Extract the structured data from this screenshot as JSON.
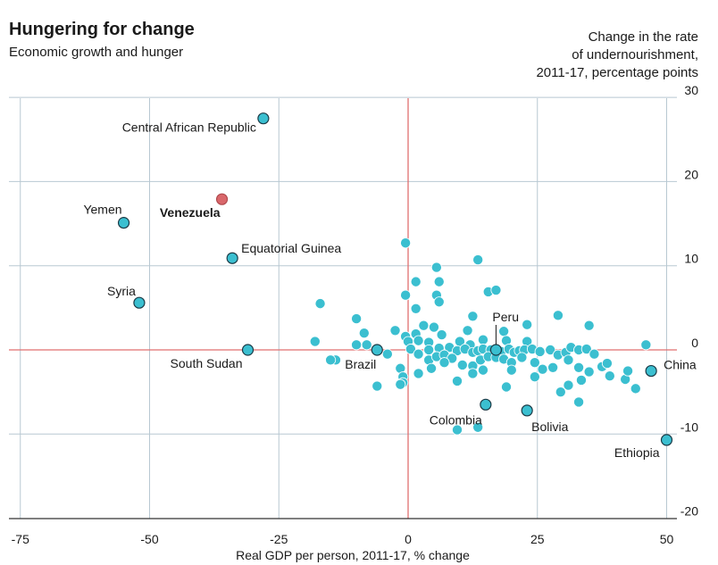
{
  "chart_data": {
    "type": "scatter",
    "title": "Hungering for change",
    "subtitle": "Economic growth and hunger",
    "ylabel": "Change in the rate of undernourishment, 2011-17, percentage points",
    "ylabel_lines": [
      "Change in the rate",
      "of undernourishment,",
      "2011-17, percentage points"
    ],
    "xlabel": "Real GDP per person, 2011-17, % change",
    "xlim": [
      -77,
      52
    ],
    "ylim": [
      -20,
      30
    ],
    "x_ticks": [
      -75,
      -50,
      -25,
      0,
      25,
      50
    ],
    "y_ticks": [
      30,
      20,
      10,
      0,
      -10,
      -20
    ],
    "grid": true,
    "colors": {
      "point": "#3bbfd0",
      "highlight": "#d9676b",
      "zero_line": "#e06f6f",
      "grid": "#b8c8d2",
      "axis": "#333333"
    },
    "labeled_points": [
      {
        "label": "Central African Republic",
        "x": -28,
        "y": 27.5
      },
      {
        "label": "Venezuela",
        "x": -36,
        "y": 17.9,
        "highlight": true
      },
      {
        "label": "Yemen",
        "x": -55,
        "y": 15.1
      },
      {
        "label": "Equatorial Guinea",
        "x": -34,
        "y": 10.9
      },
      {
        "label": "Syria",
        "x": -52,
        "y": 5.6
      },
      {
        "label": "South Sudan",
        "x": -31,
        "y": 0
      },
      {
        "label": "Brazil",
        "x": -6,
        "y": 0
      },
      {
        "label": "Peru",
        "x": 17,
        "y": 0
      },
      {
        "label": "China",
        "x": 47,
        "y": -2.5
      },
      {
        "label": "Colombia",
        "x": 15,
        "y": -6.5
      },
      {
        "label": "Bolivia",
        "x": 23,
        "y": -7.2
      },
      {
        "label": "Ethiopia",
        "x": 50,
        "y": -10.7
      }
    ],
    "points": [
      [
        -0.5,
        12.7
      ],
      [
        13.5,
        10.7
      ],
      [
        5.5,
        9.8
      ],
      [
        1.5,
        8.1
      ],
      [
        6,
        8.1
      ],
      [
        5.5,
        6.5
      ],
      [
        -0.5,
        6.5
      ],
      [
        15.5,
        6.9
      ],
      [
        17,
        7.1
      ],
      [
        -17,
        5.5
      ],
      [
        6,
        5.7
      ],
      [
        1.5,
        4.9
      ],
      [
        -10,
        3.7
      ],
      [
        12.5,
        4.0
      ],
      [
        29,
        4.1
      ],
      [
        5,
        2.7
      ],
      [
        3,
        2.9
      ],
      [
        35,
        2.9
      ],
      [
        -2.5,
        2.3
      ],
      [
        -8.5,
        2.0
      ],
      [
        -0.5,
        1.6
      ],
      [
        1.5,
        1.9
      ],
      [
        6.5,
        1.8
      ],
      [
        11.5,
        2.3
      ],
      [
        18.5,
        2.2
      ],
      [
        23,
        3.0
      ],
      [
        -18,
        1.0
      ],
      [
        -10,
        0.6
      ],
      [
        -8,
        0.6
      ],
      [
        0,
        1.0
      ],
      [
        2,
        1.1
      ],
      [
        4,
        0.9
      ],
      [
        10,
        1.0
      ],
      [
        12,
        0.6
      ],
      [
        14.5,
        1.2
      ],
      [
        19,
        1.1
      ],
      [
        23,
        1.0
      ],
      [
        -4,
        -0.5
      ],
      [
        0.5,
        0.1
      ],
      [
        4,
        0.0
      ],
      [
        6,
        0.2
      ],
      [
        8,
        0.3
      ],
      [
        9.5,
        -0.1
      ],
      [
        11,
        0.1
      ],
      [
        12.5,
        -0.3
      ],
      [
        13.5,
        -0.1
      ],
      [
        14.5,
        0.1
      ],
      [
        16,
        0.0
      ],
      [
        18,
        -0.2
      ],
      [
        19.5,
        0.1
      ],
      [
        20.5,
        -0.3
      ],
      [
        21.5,
        -0.1
      ],
      [
        22.5,
        0.0
      ],
      [
        24,
        0.1
      ],
      [
        25.5,
        -0.2
      ],
      [
        27.5,
        0.0
      ],
      [
        29,
        -0.6
      ],
      [
        30.5,
        -0.3
      ],
      [
        31.5,
        0.3
      ],
      [
        33,
        0.0
      ],
      [
        34.5,
        0.1
      ],
      [
        36,
        -0.5
      ],
      [
        46,
        0.6
      ],
      [
        2,
        -0.5
      ],
      [
        4,
        -1.2
      ],
      [
        5.5,
        -0.8
      ],
      [
        7,
        -0.6
      ],
      [
        8.5,
        -1.0
      ],
      [
        10.5,
        -1.8
      ],
      [
        12.5,
        -1.9
      ],
      [
        14,
        -1.2
      ],
      [
        15.5,
        -0.8
      ],
      [
        17,
        -0.9
      ],
      [
        18.5,
        -1.1
      ],
      [
        20,
        -1.5
      ],
      [
        22,
        -0.9
      ],
      [
        24.5,
        -1.5
      ],
      [
        26,
        -2.3
      ],
      [
        28,
        -2.1
      ],
      [
        31,
        -1.2
      ],
      [
        33,
        -2.1
      ],
      [
        35,
        -2.6
      ],
      [
        37.5,
        -2.0
      ],
      [
        38.5,
        -1.6
      ],
      [
        39,
        -3.1
      ],
      [
        42,
        -3.5
      ],
      [
        42.5,
        -2.5
      ],
      [
        -14,
        -1.2
      ],
      [
        4.5,
        -2.2
      ],
      [
        7,
        -1.5
      ],
      [
        -1.5,
        -2.2
      ],
      [
        -1,
        -3.2
      ],
      [
        -1,
        -3.9
      ],
      [
        2,
        -2.8
      ],
      [
        9.5,
        -3.7
      ],
      [
        12.5,
        -2.8
      ],
      [
        14.5,
        -2.4
      ],
      [
        19,
        -4.4
      ],
      [
        20,
        -2.4
      ],
      [
        24.5,
        -3.2
      ],
      [
        29.5,
        -5.0
      ],
      [
        31,
        -4.2
      ],
      [
        33,
        -6.2
      ],
      [
        33.5,
        -3.6
      ],
      [
        44,
        -4.6
      ],
      [
        -1.5,
        -4.1
      ],
      [
        -6,
        -4.3
      ],
      [
        9.5,
        -9.5
      ],
      [
        13.5,
        -9.2
      ],
      [
        -15,
        -1.2
      ]
    ]
  }
}
